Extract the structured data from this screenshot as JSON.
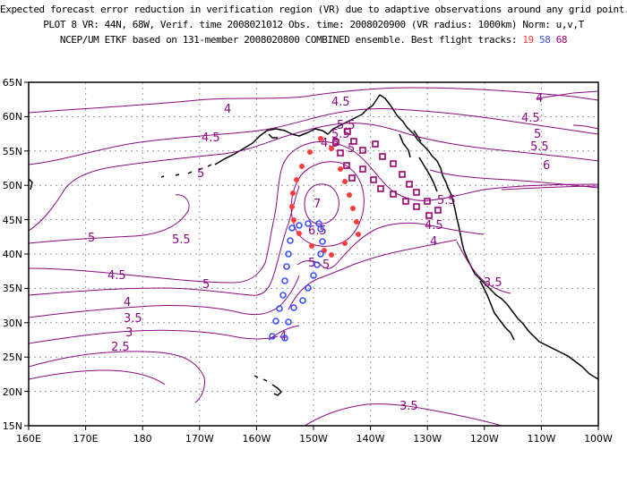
{
  "title": {
    "line1": "Expected forecast error reduction in verification region (VR) due to adaptive observations around any grid point.",
    "line2": "PLOT 8 VR: 44N, 68W, Verif. time 2008021012 Obs. time: 2008020900 (VR radius: 1000km) Norm: u,v,T",
    "line3_prefix": "NCEP/UM ETKF based on 131-member 2008020800 COMBINED ensemble.  Best flight tracks: ",
    "track1": "19",
    "track2": "58",
    "track3": "68"
  },
  "colors": {
    "contour": "#8a0a80",
    "track1": "#ff3c3c",
    "track2": "#3c50ff",
    "track3": "#a0006e",
    "grid": "#9a9a9a"
  },
  "axes": {
    "lat_labels": [
      "65N",
      "60N",
      "55N",
      "50N",
      "45N",
      "40N",
      "35N",
      "30N",
      "25N",
      "20N",
      "15N"
    ],
    "lon_labels": [
      "160E",
      "170E",
      "180",
      "170W",
      "160W",
      "150W",
      "140W",
      "130W",
      "120W",
      "110W",
      "100W"
    ]
  },
  "contour_labels": {
    "c1": "4",
    "c2": "4.5",
    "c3": "4",
    "c4": "4.5",
    "c5": "5.5",
    "c6": "4.5",
    "c7": "5",
    "c8": "5.5",
    "c9": "6",
    "c10": "4.5",
    "c11": "5",
    "c12": "5.5",
    "c13": "5",
    "c14": "5.5",
    "c15": "5",
    "c16": "7",
    "c17": "6.5",
    "c18": "5",
    "c19": "5.5",
    "c20": "4.5",
    "c21": "5",
    "c22": "4.5",
    "c23": "4",
    "c24": "3.5",
    "c25": "3",
    "c26": "2.5",
    "c27": "5",
    "c28": "4",
    "c29": "3.5",
    "c30": "3.5",
    "c31": "4"
  }
}
